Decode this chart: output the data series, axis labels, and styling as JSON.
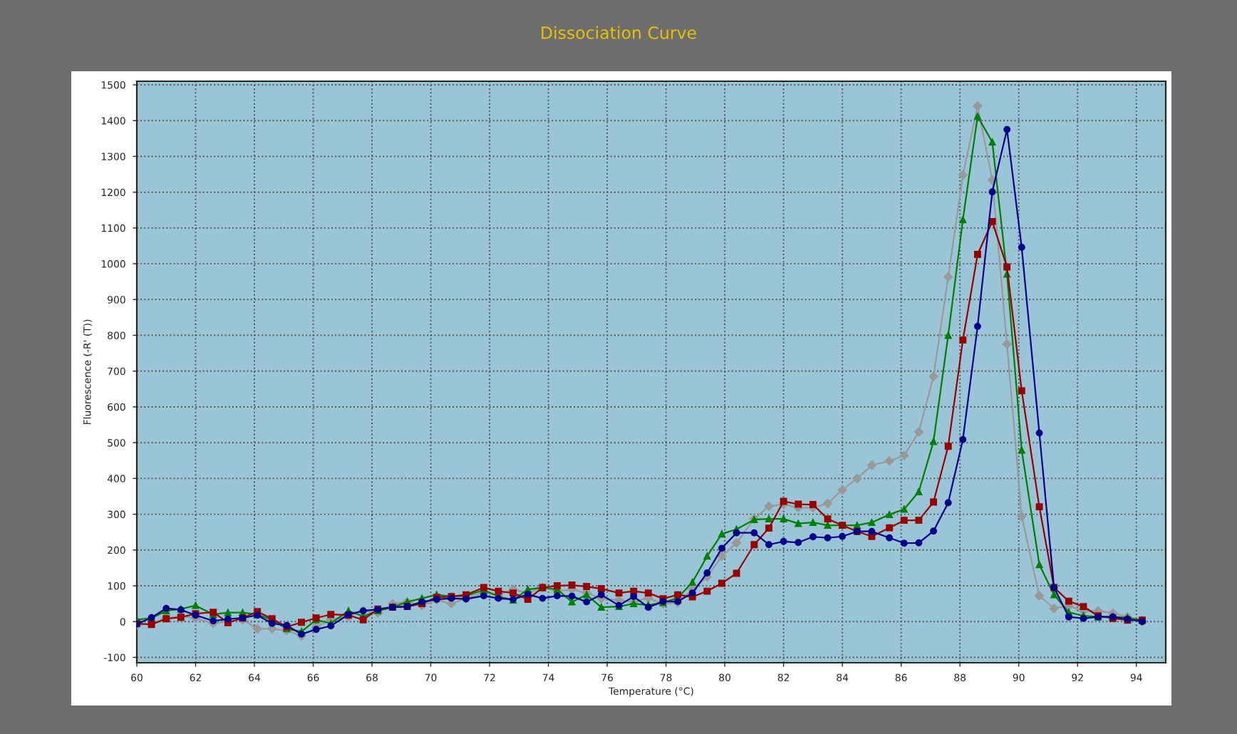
{
  "chart_data": {
    "type": "line",
    "title": "Dissociation Curve",
    "xlabel": "Temperature (°C)",
    "ylabel": "Fluorescence (-R' (T))",
    "x": [
      60.0,
      60.5,
      61.0,
      61.5,
      62.0,
      62.6,
      63.1,
      63.6,
      64.1,
      64.6,
      65.1,
      65.6,
      66.1,
      66.6,
      67.2,
      67.7,
      68.2,
      68.7,
      69.2,
      69.7,
      70.2,
      70.7,
      71.2,
      71.8,
      72.3,
      72.8,
      73.3,
      73.8,
      74.3,
      74.8,
      75.3,
      75.8,
      76.4,
      76.9,
      77.4,
      77.9,
      78.4,
      78.9,
      79.4,
      79.9,
      80.4,
      81.0,
      81.5,
      82.0,
      82.5,
      83.0,
      83.5,
      84.0,
      84.5,
      85.0,
      85.6,
      86.1,
      86.6,
      87.1,
      87.6,
      88.1,
      88.6,
      89.1,
      89.6,
      90.1,
      90.7,
      91.2,
      91.7,
      92.2,
      92.7,
      93.2,
      93.7,
      94.2
    ],
    "series": [
      {
        "color": "#00008b",
        "marker": "circle",
        "values": [
          -7,
          11,
          37,
          33,
          18,
          2,
          7,
          10,
          18,
          -5,
          -11,
          -35,
          -22,
          -12,
          20,
          30,
          34,
          40,
          42,
          55,
          62,
          65,
          63,
          72,
          65,
          62,
          76,
          65,
          72,
          71,
          55,
          75,
          45,
          70,
          40,
          56,
          56,
          80,
          136,
          205,
          248,
          248,
          215,
          224,
          221,
          237,
          234,
          238,
          252,
          252,
          234,
          219,
          220,
          253,
          332,
          509,
          825,
          1201,
          1375,
          1046,
          527,
          95,
          13,
          9,
          13,
          13,
          7,
          0
        ]
      },
      {
        "color": "#990000",
        "marker": "square",
        "values": [
          -5,
          -8,
          8,
          12,
          22,
          26,
          -3,
          10,
          28,
          8,
          -15,
          -2,
          10,
          20,
          18,
          5,
          35,
          40,
          42,
          50,
          68,
          70,
          75,
          95,
          85,
          80,
          62,
          95,
          100,
          102,
          98,
          92,
          80,
          85,
          80,
          64,
          75,
          69,
          85,
          107,
          135,
          215,
          261,
          336,
          328,
          327,
          287,
          269,
          252,
          238,
          262,
          283,
          283,
          334,
          490,
          787,
          1026,
          1118,
          991,
          645,
          321,
          95,
          57,
          42,
          16,
          9,
          4,
          4
        ]
      },
      {
        "color": "#008000",
        "marker": "triangle",
        "values": [
          5,
          10,
          30,
          35,
          45,
          20,
          25,
          25,
          20,
          5,
          -20,
          -28,
          5,
          -5,
          30,
          15,
          30,
          40,
          55,
          65,
          75,
          70,
          72,
          88,
          70,
          60,
          90,
          95,
          90,
          55,
          75,
          40,
          42,
          50,
          46,
          53,
          66,
          110,
          183,
          245,
          258,
          285,
          287,
          287,
          274,
          277,
          269,
          269,
          269,
          277,
          299,
          314,
          363,
          503,
          800,
          1123,
          1412,
          1340,
          971,
          479,
          159,
          75,
          26,
          16,
          13,
          13,
          11,
          4
        ]
      },
      {
        "color": "#999999",
        "marker": "diamond",
        "values": [
          -10,
          -5,
          10,
          15,
          10,
          -5,
          0,
          5,
          -20,
          -20,
          -25,
          -40,
          -15,
          5,
          15,
          30,
          25,
          50,
          55,
          45,
          60,
          50,
          65,
          80,
          75,
          90,
          80,
          95,
          85,
          90,
          80,
          65,
          60,
          55,
          66,
          49,
          53,
          90,
          125,
          183,
          220,
          287,
          322,
          328,
          318,
          318,
          330,
          368,
          400,
          437,
          449,
          464,
          530,
          685,
          963,
          1248,
          1441,
          1234,
          775,
          294,
          72,
          37,
          44,
          30,
          30,
          24,
          13,
          0
        ]
      }
    ],
    "xlim": [
      60,
      95
    ],
    "ylim": [
      -115,
      1510
    ],
    "xticks": [
      60,
      62,
      64,
      66,
      68,
      70,
      72,
      74,
      76,
      78,
      80,
      82,
      84,
      86,
      88,
      90,
      92,
      94
    ],
    "yticks": [
      -100,
      0,
      100,
      200,
      300,
      400,
      500,
      600,
      700,
      800,
      900,
      1000,
      1100,
      1200,
      1300,
      1400,
      1500
    ],
    "grid": true,
    "line_style": "solid"
  }
}
